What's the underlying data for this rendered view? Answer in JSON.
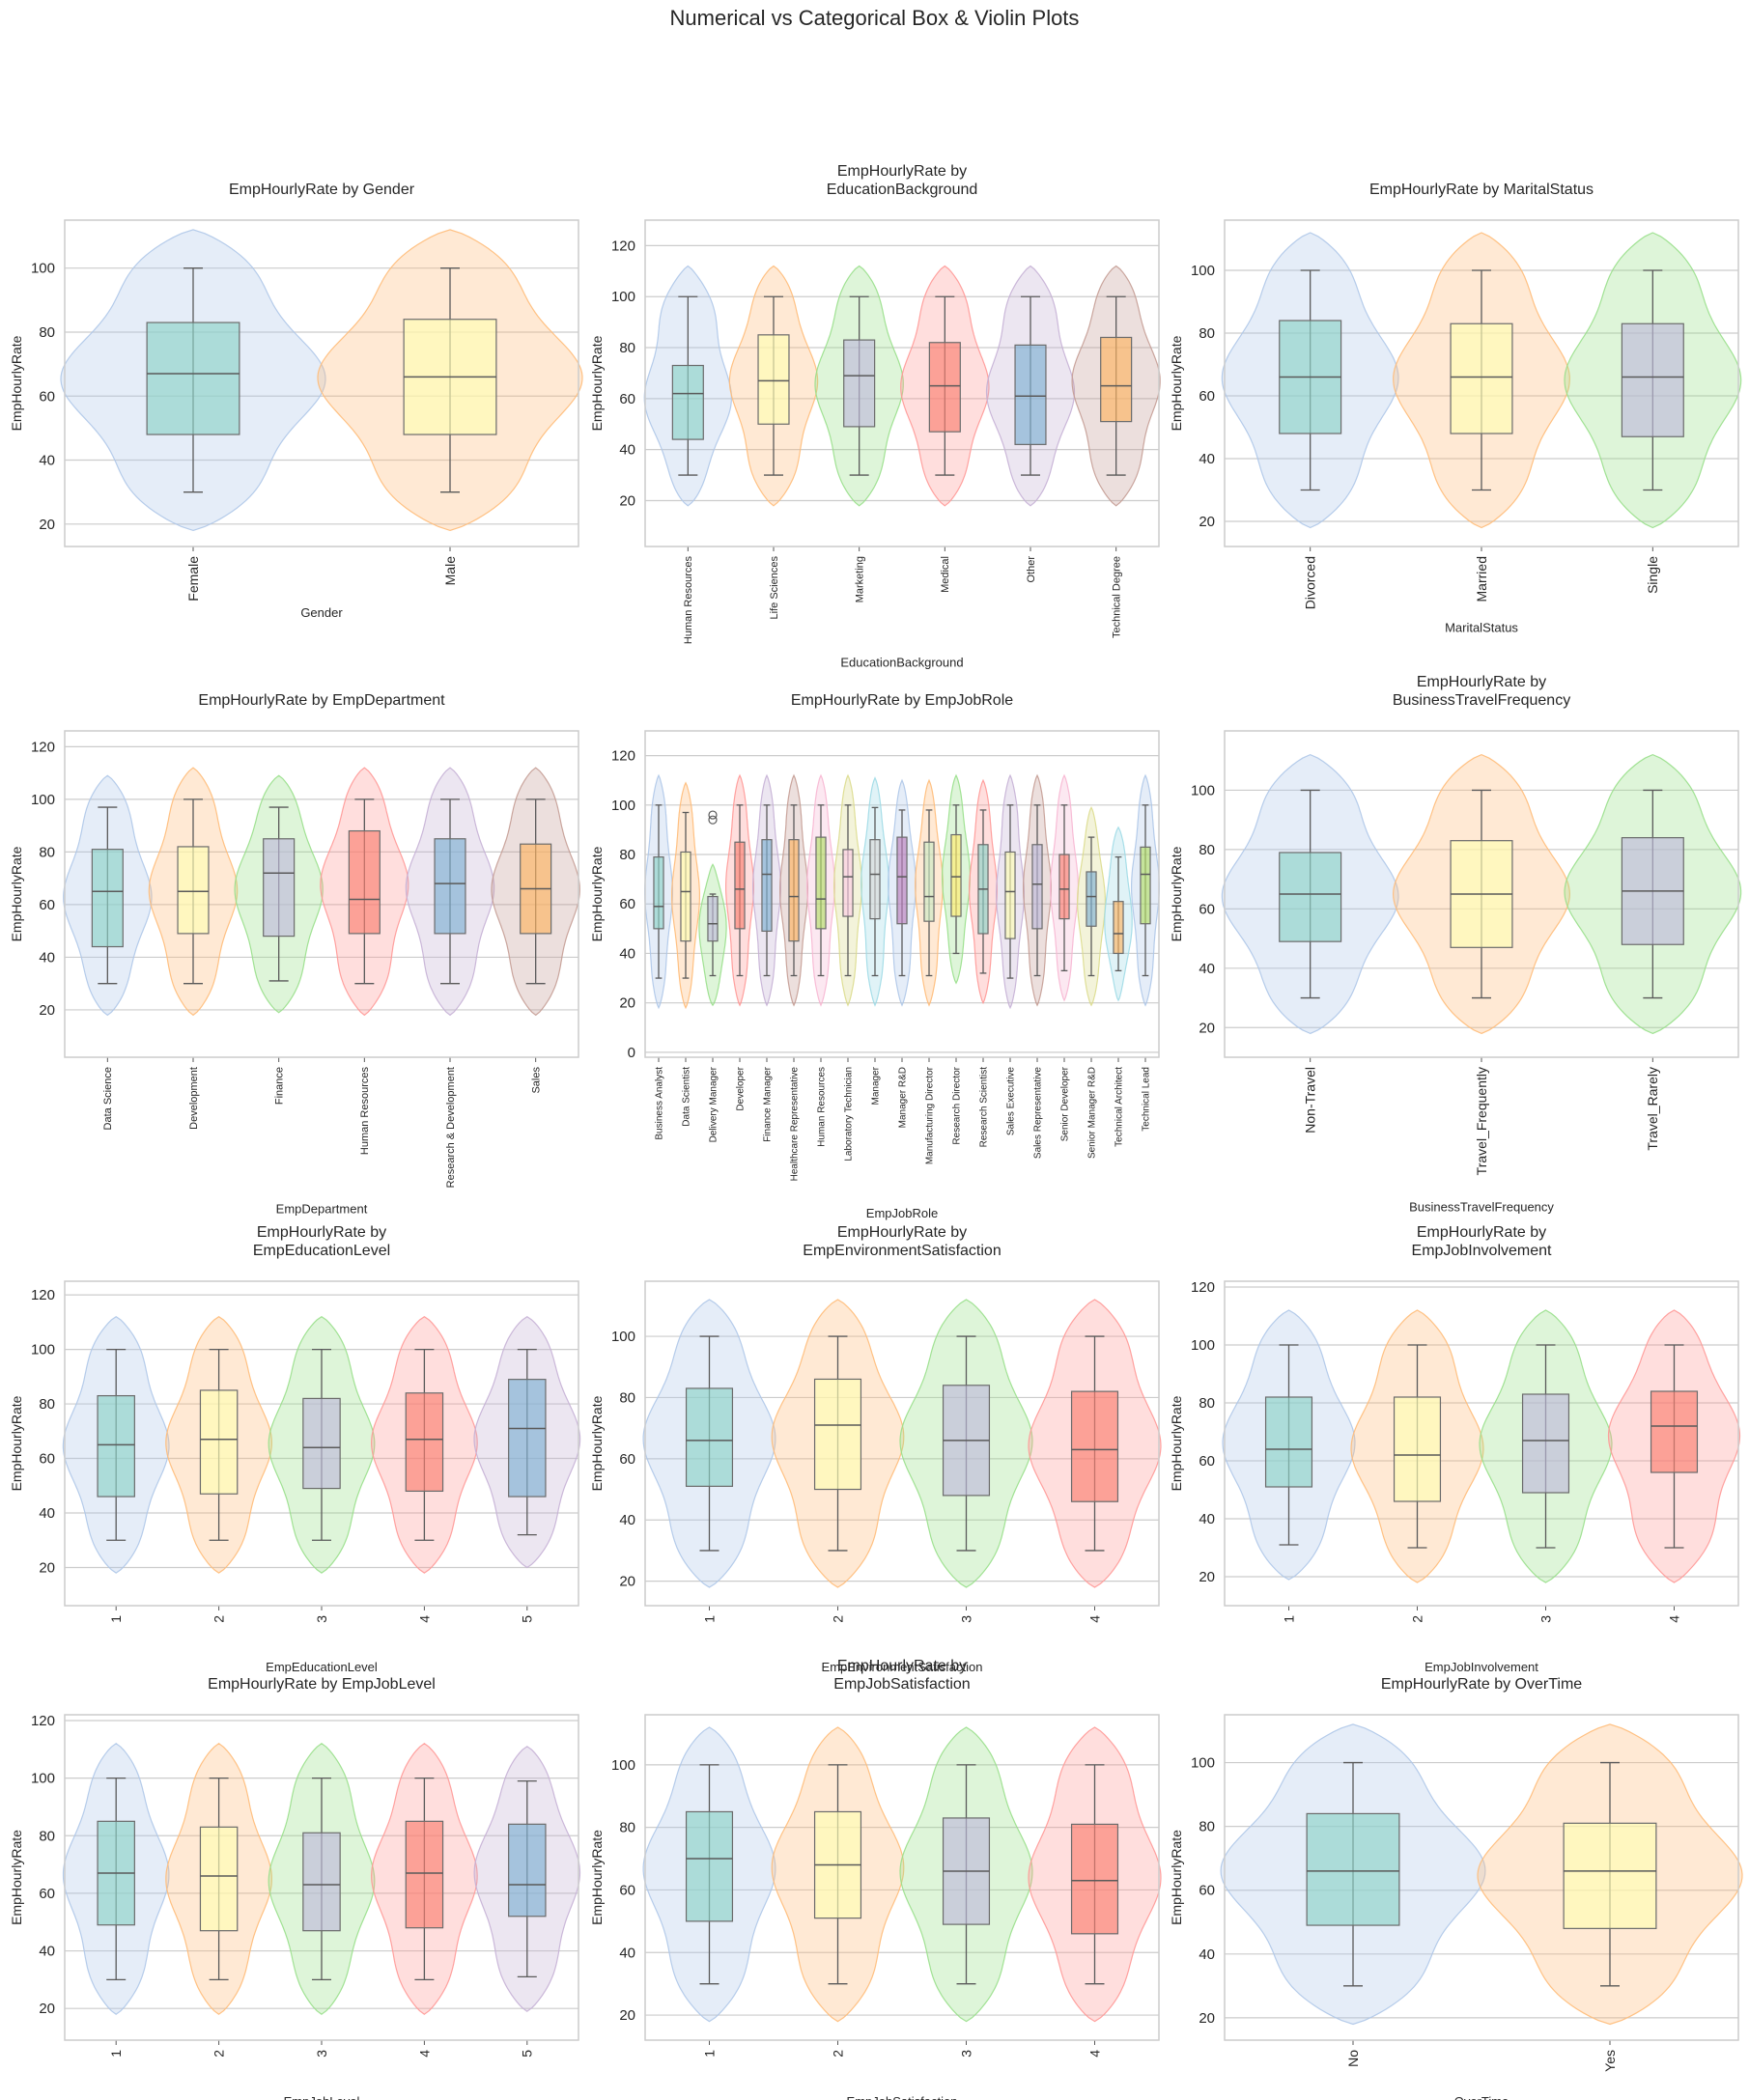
{
  "title": "Numerical vs Categorical Box & Violin Plots",
  "palette": {
    "violin": [
      "#aec7e8",
      "#ffbb78",
      "#98df8a",
      "#ff9896",
      "#c5b0d5",
      "#c49c94",
      "#f7b6d2",
      "#dbdb8d",
      "#9edae5"
    ],
    "box": [
      "#8dd3c7",
      "#ffffb3",
      "#bebada",
      "#fb8072",
      "#80b1d3",
      "#fdb462",
      "#b3de69",
      "#fccde5",
      "#d9d9d9",
      "#bc80bd",
      "#ccebc5",
      "#ffed6f"
    ],
    "grid": "#cccccc",
    "spine": "#cccccc"
  },
  "chart_data": [
    {
      "type": "violin",
      "title": "EmpHourlyRate by Gender",
      "xlabel": "Gender",
      "ylabel": "EmpHourlyRate",
      "ylim": [
        13,
        115
      ],
      "yticks": [
        20,
        40,
        60,
        80,
        100
      ],
      "categories": [
        "Female",
        "Male"
      ],
      "box": [
        {
          "whislo": 30,
          "q1": 48,
          "med": 67,
          "q3": 83,
          "whishi": 100
        },
        {
          "whislo": 30,
          "q1": 48,
          "med": 66,
          "q3": 84,
          "whishi": 100
        }
      ]
    },
    {
      "type": "violin",
      "title": "EmpHourlyRate by\nEducationBackground",
      "xlabel": "EducationBackground",
      "ylabel": "EmpHourlyRate",
      "ylim": [
        2,
        130
      ],
      "yticks": [
        20,
        40,
        60,
        80,
        100,
        120
      ],
      "categories": [
        "Human Resources",
        "Life Sciences",
        "Marketing",
        "Medical",
        "Other",
        "Technical Degree"
      ],
      "box": [
        {
          "whislo": 30,
          "q1": 44,
          "med": 62,
          "q3": 73,
          "whishi": 100
        },
        {
          "whislo": 30,
          "q1": 50,
          "med": 67,
          "q3": 85,
          "whishi": 100
        },
        {
          "whislo": 30,
          "q1": 49,
          "med": 69,
          "q3": 83,
          "whishi": 100
        },
        {
          "whislo": 30,
          "q1": 47,
          "med": 65,
          "q3": 82,
          "whishi": 100
        },
        {
          "whislo": 30,
          "q1": 42,
          "med": 61,
          "q3": 81,
          "whishi": 100
        },
        {
          "whislo": 30,
          "q1": 51,
          "med": 65,
          "q3": 84,
          "whishi": 100
        }
      ]
    },
    {
      "type": "violin",
      "title": "EmpHourlyRate by MaritalStatus",
      "xlabel": "MaritalStatus",
      "ylabel": "EmpHourlyRate",
      "ylim": [
        12,
        116
      ],
      "yticks": [
        20,
        40,
        60,
        80,
        100
      ],
      "categories": [
        "Divorced",
        "Married",
        "Single"
      ],
      "box": [
        {
          "whislo": 30,
          "q1": 48,
          "med": 66,
          "q3": 84,
          "whishi": 100
        },
        {
          "whislo": 30,
          "q1": 48,
          "med": 66,
          "q3": 83,
          "whishi": 100
        },
        {
          "whislo": 30,
          "q1": 47,
          "med": 66,
          "q3": 83,
          "whishi": 100
        }
      ]
    },
    {
      "type": "violin",
      "title": "EmpHourlyRate by EmpDepartment",
      "xlabel": "EmpDepartment",
      "ylabel": "EmpHourlyRate",
      "ylim": [
        2,
        126
      ],
      "yticks": [
        20,
        40,
        60,
        80,
        100,
        120
      ],
      "categories": [
        "Data Science",
        "Development",
        "Finance",
        "Human Resources",
        "Research & Development",
        "Sales"
      ],
      "box": [
        {
          "whislo": 30,
          "q1": 44,
          "med": 65,
          "q3": 81,
          "whishi": 97
        },
        {
          "whislo": 30,
          "q1": 49,
          "med": 65,
          "q3": 82,
          "whishi": 100
        },
        {
          "whislo": 31,
          "q1": 48,
          "med": 72,
          "q3": 85,
          "whishi": 97
        },
        {
          "whislo": 30,
          "q1": 49,
          "med": 62,
          "q3": 88,
          "whishi": 100
        },
        {
          "whislo": 30,
          "q1": 49,
          "med": 68,
          "q3": 85,
          "whishi": 100
        },
        {
          "whislo": 30,
          "q1": 49,
          "med": 66,
          "q3": 83,
          "whishi": 100
        }
      ]
    },
    {
      "type": "violin",
      "title": "EmpHourlyRate by EmpJobRole",
      "xlabel": "EmpJobRole",
      "ylabel": "EmpHourlyRate",
      "ylim": [
        -2,
        130
      ],
      "yticks": [
        0,
        20,
        40,
        60,
        80,
        100,
        120
      ],
      "categories": [
        "Business Analyst",
        "Data Scientist",
        "Delivery Manager",
        "Developer",
        "Finance Manager",
        "Healthcare Representative",
        "Human Resources",
        "Laboratory Technician",
        "Manager",
        "Manager R&D",
        "Manufacturing Director",
        "Research Director",
        "Research Scientist",
        "Sales Executive",
        "Sales Representative",
        "Senior Developer",
        "Senior Manager R&D",
        "Technical Architect",
        "Technical Lead"
      ],
      "box": [
        {
          "whislo": 30,
          "q1": 50,
          "med": 59,
          "q3": 79,
          "whishi": 100
        },
        {
          "whislo": 30,
          "q1": 45,
          "med": 65,
          "q3": 81,
          "whishi": 97
        },
        {
          "whislo": 31,
          "q1": 45,
          "med": 52,
          "q3": 63,
          "whishi": 64,
          "fliers": [
            96,
            94
          ]
        },
        {
          "whislo": 31,
          "q1": 50,
          "med": 66,
          "q3": 85,
          "whishi": 100
        },
        {
          "whislo": 31,
          "q1": 49,
          "med": 72,
          "q3": 86,
          "whishi": 100
        },
        {
          "whislo": 31,
          "q1": 45,
          "med": 63,
          "q3": 86,
          "whishi": 100
        },
        {
          "whislo": 31,
          "q1": 50,
          "med": 62,
          "q3": 87,
          "whishi": 100
        },
        {
          "whislo": 31,
          "q1": 55,
          "med": 71,
          "q3": 82,
          "whishi": 100
        },
        {
          "whislo": 31,
          "q1": 54,
          "med": 72,
          "q3": 86,
          "whishi": 99
        },
        {
          "whislo": 31,
          "q1": 52,
          "med": 71,
          "q3": 87,
          "whishi": 98
        },
        {
          "whislo": 31,
          "q1": 53,
          "med": 63,
          "q3": 85,
          "whishi": 98
        },
        {
          "whislo": 40,
          "q1": 55,
          "med": 71,
          "q3": 88,
          "whishi": 100
        },
        {
          "whislo": 32,
          "q1": 48,
          "med": 66,
          "q3": 84,
          "whishi": 98
        },
        {
          "whislo": 30,
          "q1": 46,
          "med": 65,
          "q3": 81,
          "whishi": 100
        },
        {
          "whislo": 31,
          "q1": 50,
          "med": 68,
          "q3": 84,
          "whishi": 100
        },
        {
          "whislo": 33,
          "q1": 54,
          "med": 66,
          "q3": 80,
          "whishi": 100
        },
        {
          "whislo": 31,
          "q1": 51,
          "med": 63,
          "q3": 73,
          "whishi": 87
        },
        {
          "whislo": 33,
          "q1": 40,
          "med": 48,
          "q3": 61,
          "whishi": 79
        },
        {
          "whislo": 31,
          "q1": 52,
          "med": 72,
          "q3": 83,
          "whishi": 100
        }
      ]
    },
    {
      "type": "violin",
      "title": "EmpHourlyRate by\nBusinessTravelFrequency",
      "xlabel": "BusinessTravelFrequency",
      "ylabel": "EmpHourlyRate",
      "ylim": [
        10,
        120
      ],
      "yticks": [
        20,
        40,
        60,
        80,
        100
      ],
      "categories": [
        "Non-Travel",
        "Travel_Frequently",
        "Travel_Rarely"
      ],
      "box": [
        {
          "whislo": 30,
          "q1": 49,
          "med": 65,
          "q3": 79,
          "whishi": 100
        },
        {
          "whislo": 30,
          "q1": 47,
          "med": 65,
          "q3": 83,
          "whishi": 100
        },
        {
          "whislo": 30,
          "q1": 48,
          "med": 66,
          "q3": 84,
          "whishi": 100
        }
      ]
    },
    {
      "type": "violin",
      "title": "EmpHourlyRate by\nEmpEducationLevel",
      "xlabel": "EmpEducationLevel",
      "ylabel": "EmpHourlyRate",
      "ylim": [
        6,
        125
      ],
      "yticks": [
        20,
        40,
        60,
        80,
        100,
        120
      ],
      "categories": [
        "1",
        "2",
        "3",
        "4",
        "5"
      ],
      "box": [
        {
          "whislo": 30,
          "q1": 46,
          "med": 65,
          "q3": 83,
          "whishi": 100
        },
        {
          "whislo": 30,
          "q1": 47,
          "med": 67,
          "q3": 85,
          "whishi": 100
        },
        {
          "whislo": 30,
          "q1": 49,
          "med": 64,
          "q3": 82,
          "whishi": 100
        },
        {
          "whislo": 30,
          "q1": 48,
          "med": 67,
          "q3": 84,
          "whishi": 100
        },
        {
          "whislo": 32,
          "q1": 46,
          "med": 71,
          "q3": 89,
          "whishi": 100
        }
      ]
    },
    {
      "type": "violin",
      "title": "EmpHourlyRate by\nEmpEnvironmentSatisfaction",
      "xlabel": "EmpEnvironmentSatisfaction",
      "ylabel": "EmpHourlyRate",
      "ylim": [
        12,
        118
      ],
      "yticks": [
        20,
        40,
        60,
        80,
        100
      ],
      "categories": [
        "1",
        "2",
        "3",
        "4"
      ],
      "box": [
        {
          "whislo": 30,
          "q1": 51,
          "med": 66,
          "q3": 83,
          "whishi": 100
        },
        {
          "whislo": 30,
          "q1": 50,
          "med": 71,
          "q3": 86,
          "whishi": 100
        },
        {
          "whislo": 30,
          "q1": 48,
          "med": 66,
          "q3": 84,
          "whishi": 100
        },
        {
          "whislo": 30,
          "q1": 46,
          "med": 63,
          "q3": 82,
          "whishi": 100
        }
      ]
    },
    {
      "type": "violin",
      "title": "EmpHourlyRate by\nEmpJobInvolvement",
      "xlabel": "EmpJobInvolvement",
      "ylabel": "EmpHourlyRate",
      "ylim": [
        10,
        122
      ],
      "yticks": [
        20,
        40,
        60,
        80,
        100,
        120
      ],
      "categories": [
        "1",
        "2",
        "3",
        "4"
      ],
      "box": [
        {
          "whislo": 31,
          "q1": 51,
          "med": 64,
          "q3": 82,
          "whishi": 100
        },
        {
          "whislo": 30,
          "q1": 46,
          "med": 62,
          "q3": 82,
          "whishi": 100
        },
        {
          "whislo": 30,
          "q1": 49,
          "med": 67,
          "q3": 83,
          "whishi": 100
        },
        {
          "whislo": 30,
          "q1": 56,
          "med": 72,
          "q3": 84,
          "whishi": 100
        }
      ]
    },
    {
      "type": "violin",
      "title": "EmpHourlyRate by EmpJobLevel",
      "xlabel": "EmpJobLevel",
      "ylabel": "EmpHourlyRate",
      "ylim": [
        9,
        122
      ],
      "yticks": [
        20,
        40,
        60,
        80,
        100,
        120
      ],
      "categories": [
        "1",
        "2",
        "3",
        "4",
        "5"
      ],
      "box": [
        {
          "whislo": 30,
          "q1": 49,
          "med": 67,
          "q3": 85,
          "whishi": 100
        },
        {
          "whislo": 30,
          "q1": 47,
          "med": 66,
          "q3": 83,
          "whishi": 100
        },
        {
          "whislo": 30,
          "q1": 47,
          "med": 63,
          "q3": 81,
          "whishi": 100
        },
        {
          "whislo": 30,
          "q1": 48,
          "med": 67,
          "q3": 85,
          "whishi": 100
        },
        {
          "whislo": 31,
          "q1": 52,
          "med": 63,
          "q3": 84,
          "whishi": 99
        }
      ]
    },
    {
      "type": "violin",
      "title": "EmpHourlyRate by\nEmpJobSatisfaction",
      "xlabel": "EmpJobSatisfaction",
      "ylabel": "EmpHourlyRate",
      "ylim": [
        12,
        116
      ],
      "yticks": [
        20,
        40,
        60,
        80,
        100
      ],
      "categories": [
        "1",
        "2",
        "3",
        "4"
      ],
      "box": [
        {
          "whislo": 30,
          "q1": 50,
          "med": 70,
          "q3": 85,
          "whishi": 100
        },
        {
          "whislo": 30,
          "q1": 51,
          "med": 68,
          "q3": 85,
          "whishi": 100
        },
        {
          "whislo": 30,
          "q1": 49,
          "med": 66,
          "q3": 83,
          "whishi": 100
        },
        {
          "whislo": 30,
          "q1": 46,
          "med": 63,
          "q3": 81,
          "whishi": 100
        }
      ]
    },
    {
      "type": "violin",
      "title": "EmpHourlyRate by OverTime",
      "xlabel": "OverTime",
      "ylabel": "EmpHourlyRate",
      "ylim": [
        13,
        115
      ],
      "yticks": [
        20,
        40,
        60,
        80,
        100
      ],
      "categories": [
        "No",
        "Yes"
      ],
      "box": [
        {
          "whislo": 30,
          "q1": 49,
          "med": 66,
          "q3": 84,
          "whishi": 100
        },
        {
          "whislo": 30,
          "q1": 48,
          "med": 66,
          "q3": 81,
          "whishi": 100
        }
      ]
    }
  ]
}
